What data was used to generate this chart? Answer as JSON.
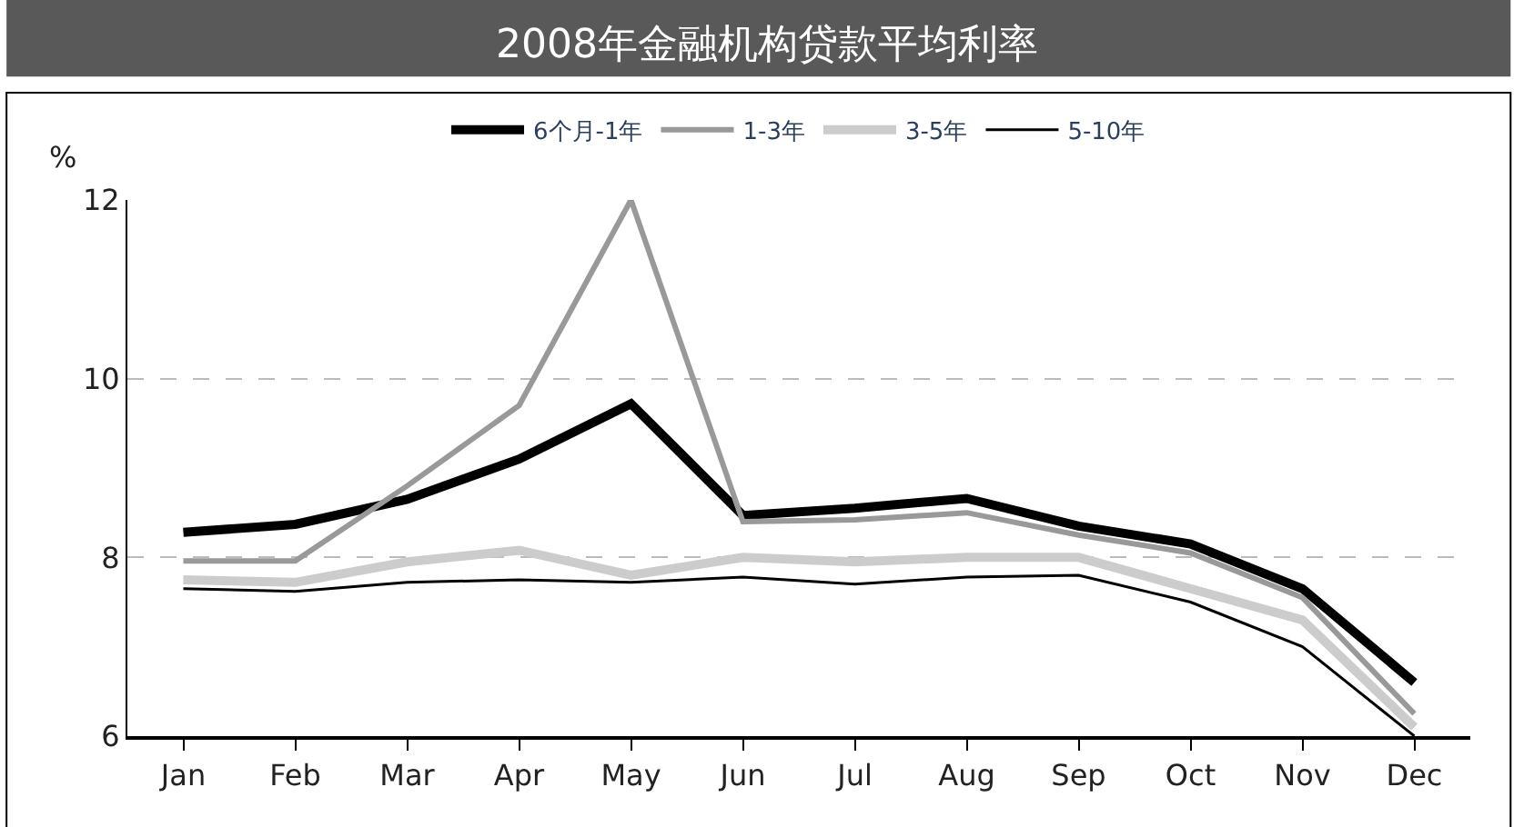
{
  "chart_data": {
    "type": "line",
    "title": "2008年金融机构贷款平均利率",
    "ylabel": "%",
    "categories": [
      "Jan",
      "Feb",
      "Mar",
      "Apr",
      "May",
      "Jun",
      "Jul",
      "Aug",
      "Sep",
      "Oct",
      "Nov",
      "Dec"
    ],
    "series": [
      {
        "name": "6个月-1年",
        "color": "#000000",
        "values": [
          8.28,
          8.37,
          8.65,
          9.1,
          9.72,
          8.47,
          8.55,
          8.66,
          8.35,
          8.15,
          7.65,
          6.6
        ]
      },
      {
        "name": "1-3年",
        "color": "#999999",
        "values": [
          7.96,
          7.96,
          8.8,
          9.7,
          12.0,
          8.4,
          8.42,
          8.5,
          8.25,
          8.05,
          7.55,
          6.25
        ]
      },
      {
        "name": "3-5年",
        "color": "#cccccc",
        "values": [
          7.75,
          7.72,
          7.95,
          8.08,
          7.8,
          8.0,
          7.95,
          8.0,
          8.0,
          7.65,
          7.3,
          6.1
        ]
      },
      {
        "name": "5-10年",
        "color": "#000000",
        "values": [
          7.65,
          7.62,
          7.72,
          7.75,
          7.72,
          7.78,
          7.7,
          7.78,
          7.8,
          7.5,
          7.0,
          6.0
        ]
      }
    ],
    "ylim": [
      6,
      12
    ],
    "yticks": [
      6,
      8,
      10,
      12
    ],
    "grid": "y",
    "legend": "top",
    "marker": "none",
    "line_style": "solid"
  }
}
